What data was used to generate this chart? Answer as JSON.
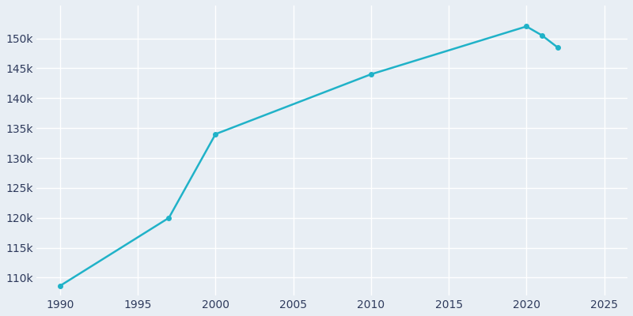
{
  "years": [
    1990,
    1997,
    2000,
    2010,
    2020,
    2021,
    2022
  ],
  "population": [
    108635,
    120000,
    134000,
    144000,
    152000,
    150500,
    148500
  ],
  "line_color": "#20B2C8",
  "bg_color": "#E8EEF4",
  "axes_bg_color": "#E8EEF4",
  "text_color": "#2E3A5C",
  "grid_color": "#FFFFFF",
  "xlim": [
    1988.5,
    2026.5
  ],
  "ylim": [
    107000,
    155500
  ],
  "xticks": [
    1990,
    1995,
    2000,
    2005,
    2010,
    2015,
    2020,
    2025
  ],
  "yticks": [
    110000,
    115000,
    120000,
    125000,
    130000,
    135000,
    140000,
    145000,
    150000
  ],
  "line_width": 1.8,
  "marker": "o",
  "marker_size": 4
}
